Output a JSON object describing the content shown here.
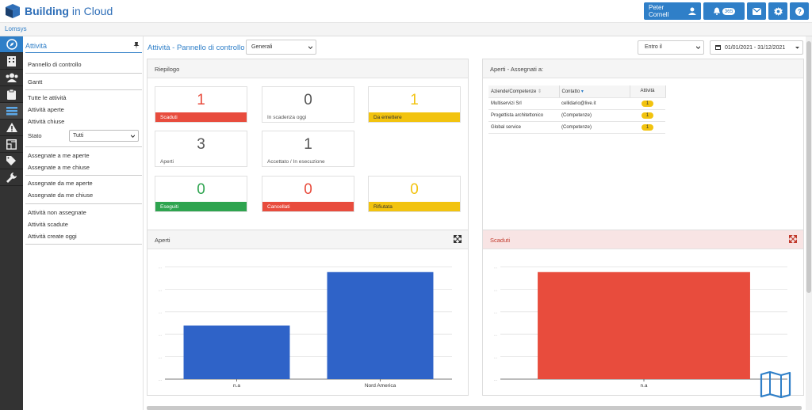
{
  "app": {
    "name_bold": "Building",
    "name_rest": " in Cloud"
  },
  "topbar": {
    "user": "Peter Cornell",
    "notifications": "365"
  },
  "subbar": {
    "company": "Lomsys"
  },
  "sidebar": {
    "title": "Attività",
    "items": {
      "pannello": "Pannello di controllo",
      "gantt": "Gantt",
      "tutte": "Tutte le attività",
      "aperte": "Attività aperte",
      "chiuse": "Attività chiuse",
      "stato": "Stato",
      "stato_value": "Tutti",
      "ass_me_aperte": "Assegnate a me aperte",
      "ass_me_chiuse": "Assegnate a me chiuse",
      "ass_da_aperte": "Assegnate da me aperte",
      "ass_da_chiuse": "Assegnate da me chiuse",
      "non_assegnate": "Attività non assegnate",
      "scadute": "Attività scadute",
      "create_oggi": "Attività create oggi"
    }
  },
  "main": {
    "title": "Attività - Pannello di controllo",
    "view_select": "Generali",
    "entro": "Entro il",
    "date_range": "01/01/2021 - 31/12/2021"
  },
  "riepilogo": {
    "title": "Riepilogo",
    "tiles": [
      {
        "value": "1",
        "label": "Scaduti",
        "color": "#e84c3d"
      },
      {
        "value": "0",
        "label": "In scadenza oggi",
        "color": "#555555"
      },
      {
        "value": "1",
        "label": "Da emettere",
        "color": "#f2c30f"
      },
      {
        "value": "3",
        "label": "Aperti",
        "color": "#555555"
      },
      {
        "value": "1",
        "label": "Accettato / In esecuzione",
        "color": "#555555"
      },
      {
        "value": "0",
        "label": "Eseguiti",
        "color": "#2ea44f"
      },
      {
        "value": "0",
        "label": "Cancellati",
        "color": "#e84c3d"
      },
      {
        "value": "0",
        "label": "Rifiutata",
        "color": "#f2c30f"
      }
    ]
  },
  "assegnati": {
    "title": "Aperti - Assegnati a:",
    "columns": [
      "Aziende/Competenze",
      "Contatto",
      "Attività"
    ],
    "rows": [
      {
        "azienda": "Multiservizi Srl",
        "contatto": "cellidario@live.it",
        "attivita": "1"
      },
      {
        "azienda": "Progettista architettonico",
        "contatto": "(Competenze)",
        "attivita": "1"
      },
      {
        "azienda": "Global service",
        "contatto": "(Competenze)",
        "attivita": "1"
      }
    ]
  },
  "chart_data": [
    {
      "type": "bar",
      "title": "Aperti",
      "categories": [
        "n.a",
        "Nord America"
      ],
      "values": [
        1,
        2
      ],
      "ylim": [
        0,
        2.1
      ],
      "color": "#2f63c8",
      "grid": true
    },
    {
      "type": "bar",
      "title": "Scaduti",
      "categories": [
        "n.a"
      ],
      "values": [
        1
      ],
      "ylim": [
        0,
        1.05
      ],
      "color": "#e84c3d",
      "grid": true
    }
  ]
}
